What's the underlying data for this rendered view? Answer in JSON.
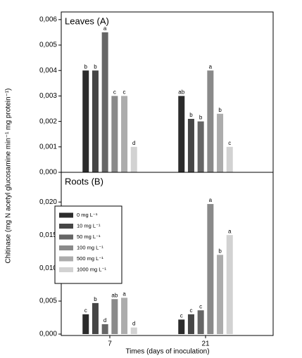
{
  "chart_data": [
    {
      "type": "bar",
      "title": "Leaves (A)",
      "ylabel": "Chitinase (mg N acetyl glucosamine min⁻¹ mg protein⁻¹)",
      "ylim": [
        0,
        0.0063
      ],
      "yticks": [
        {
          "value": 0,
          "label": "0,000"
        },
        {
          "value": 0.001,
          "label": "0,001"
        },
        {
          "value": 0.002,
          "label": "0,002"
        },
        {
          "value": 0.003,
          "label": "0,003"
        },
        {
          "value": 0.004,
          "label": "0,004"
        },
        {
          "value": 0.005,
          "label": "0,005"
        },
        {
          "value": 0.006,
          "label": "0,006"
        }
      ],
      "series": [
        {
          "color": "#2b2b2b",
          "values": [
            0.004,
            0.003
          ],
          "letters": [
            "b",
            "ab"
          ]
        },
        {
          "color": "#464646",
          "values": [
            0.004,
            0.0021
          ],
          "letters": [
            "b",
            "b"
          ]
        },
        {
          "color": "#666666",
          "values": [
            0.0055,
            0.002
          ],
          "letters": [
            "a",
            "b"
          ]
        },
        {
          "color": "#8a8a8a",
          "values": [
            0.003,
            0.004
          ],
          "letters": [
            "c",
            "a"
          ]
        },
        {
          "color": "#acacac",
          "values": [
            0.003,
            0.0023
          ],
          "letters": [
            "c",
            "b"
          ]
        },
        {
          "color": "#d2d2d2",
          "values": [
            0.001,
            0.001
          ],
          "letters": [
            "d",
            "c"
          ]
        }
      ]
    },
    {
      "type": "bar",
      "title": "Roots (B)",
      "xlabel": "Times (days of inoculation)",
      "categories": [
        "7",
        "21"
      ],
      "ylim": [
        0,
        0.0245
      ],
      "yticks": [
        {
          "value": 0,
          "label": "0,000"
        },
        {
          "value": 0.005,
          "label": "0,005"
        },
        {
          "value": 0.01,
          "label": "0,010"
        },
        {
          "value": 0.015,
          "label": "0,015"
        },
        {
          "value": 0.02,
          "label": "0,020"
        }
      ],
      "legend": "upper left",
      "series": [
        {
          "name": "0 mg L⁻¹",
          "color": "#2b2b2b",
          "values": [
            0.003,
            0.0022
          ],
          "letters": [
            "c",
            "c"
          ]
        },
        {
          "name": "10 mg L⁻¹",
          "color": "#464646",
          "values": [
            0.0047,
            0.003
          ],
          "letters": [
            "b",
            "c"
          ]
        },
        {
          "name": "50 mg L⁻¹",
          "color": "#666666",
          "values": [
            0.0015,
            0.0036
          ],
          "letters": [
            "d",
            "c"
          ]
        },
        {
          "name": "100 mg L⁻¹",
          "color": "#8a8a8a",
          "values": [
            0.0053,
            0.0197
          ],
          "letters": [
            "ab",
            "a"
          ]
        },
        {
          "name": "500 mg L⁻¹",
          "color": "#acacac",
          "values": [
            0.0055,
            0.012
          ],
          "letters": [
            "a",
            "b"
          ]
        },
        {
          "name": "1000 mg L⁻¹",
          "color": "#d2d2d2",
          "values": [
            0.001,
            0.015
          ],
          "letters": [
            "d",
            "a"
          ]
        }
      ]
    }
  ]
}
